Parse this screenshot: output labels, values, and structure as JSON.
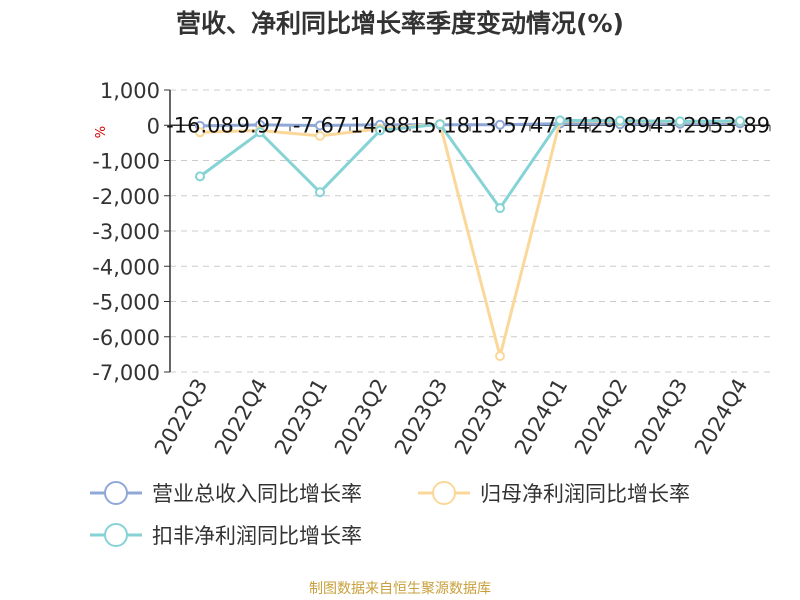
{
  "chart_data": {
    "type": "line",
    "title": "营收、净利同比增长率季度变动情况(%)",
    "ylabel": "%",
    "ylim": [
      -7000,
      1000
    ],
    "yticks": [
      1000,
      0,
      -1000,
      -2000,
      -3000,
      -4000,
      -5000,
      -6000,
      -7000
    ],
    "ytick_labels": [
      "1,000",
      "0",
      "-1,000",
      "-2,000",
      "-3,000",
      "-4,000",
      "-5,000",
      "-6,000",
      "-7,000"
    ],
    "categories": [
      "2022Q3",
      "2022Q4",
      "2023Q1",
      "2023Q2",
      "2023Q3",
      "2023Q4",
      "2024Q1",
      "2024Q2",
      "2024Q3",
      "2024Q4"
    ],
    "grid": true,
    "legend_position": "bottom",
    "series": [
      {
        "name": "营业总收入同比增长率",
        "color": "#8fa8d8",
        "values": [
          -16.08,
          9.97,
          -7.67,
          14.88,
          15.18,
          13.57,
          47.14,
          29.89,
          43.29,
          53.89
        ]
      },
      {
        "name": "归母净利润同比增长率",
        "color": "#fbd89a",
        "values": [
          -200,
          -150,
          -300,
          -100,
          40,
          -6550,
          120,
          110,
          100,
          110
        ]
      },
      {
        "name": "扣非净利润同比增长率",
        "color": "#86d3d6",
        "values": [
          -1450,
          -200,
          -1900,
          -150,
          30,
          -2350,
          140,
          130,
          110,
          120
        ]
      }
    ],
    "data_labels": [
      "-16.08",
      "9.97",
      "-7.67",
      "14.88",
      "15.18",
      "13.57",
      "47.14",
      "29.89",
      "43.29",
      "53.89"
    ]
  },
  "source": "制图数据来自恒生聚源数据库"
}
